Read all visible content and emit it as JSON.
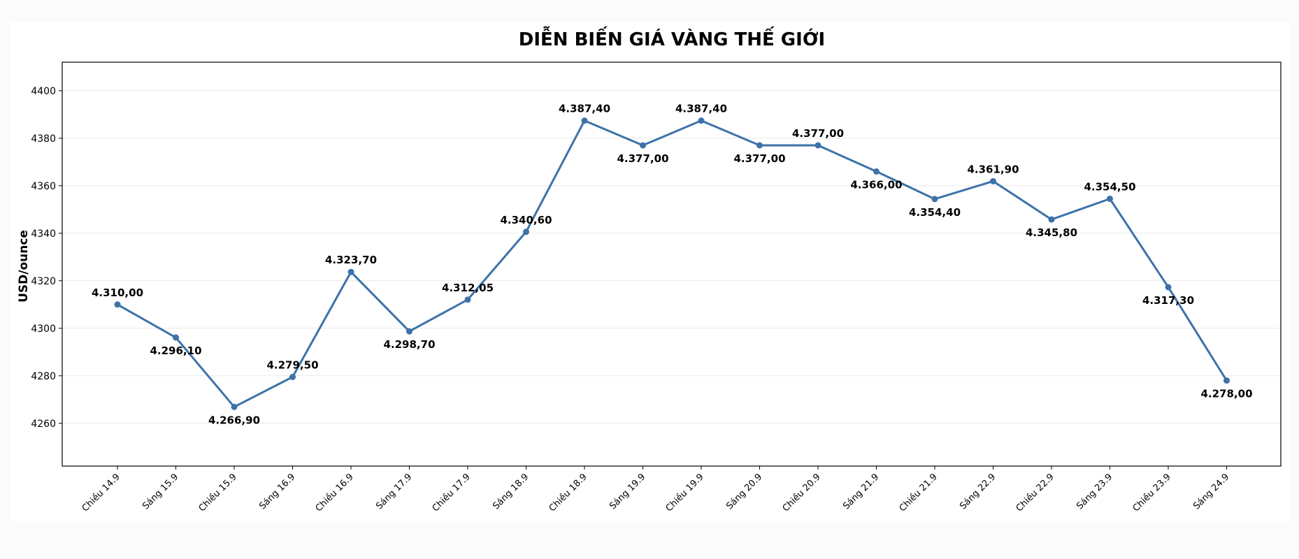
{
  "chart_data": {
    "type": "line",
    "title": "DIỄN BIẾN GIÁ VÀNG THẾ GIỚI",
    "xlabel": "",
    "ylabel": "USD/ounce",
    "ylim": [
      4242,
      4412
    ],
    "yticks": [
      4260,
      4280,
      4300,
      4320,
      4340,
      4360,
      4380,
      4400
    ],
    "grid": true,
    "colors": {
      "line": "#3d72a9"
    },
    "categories": [
      "Chiều 14.9",
      "Sáng 15.9",
      "Chiều 15.9",
      "Sáng 16.9",
      "Chiều 16.9",
      "Sáng 17.9",
      "Chiều 17.9",
      "Sáng 18.9",
      "Chiều 18.9",
      "Sáng 19.9",
      "Chiều 19.9",
      "Sáng 20.9",
      "Chiều 20.9",
      "Sáng 21.9",
      "Chiều 21.9",
      "Sáng 22.9",
      "Chiều 22.9",
      "Sáng 23.9",
      "Chiều 23.9",
      "Sáng 24.9"
    ],
    "values": [
      4310.0,
      4296.1,
      4266.9,
      4279.5,
      4323.7,
      4298.7,
      4312.05,
      4340.6,
      4387.4,
      4377.0,
      4387.4,
      4377.0,
      4377.0,
      4366.0,
      4354.4,
      4361.9,
      4345.8,
      4354.5,
      4317.3,
      4278.0
    ],
    "data_labels": [
      "4.310,00",
      "4.296,10",
      "4.266,90",
      "4.279,50",
      "4.323,70",
      "4.298,70",
      "4.312,05",
      "4.340,60",
      "4.387,40",
      "4.377,00",
      "4.387,40",
      "4.377,00",
      "4.377,00",
      "4.366,00",
      "4.354,40",
      "4.361,90",
      "4.345,80",
      "4.354,50",
      "4.317,30",
      "4.278,00"
    ]
  }
}
